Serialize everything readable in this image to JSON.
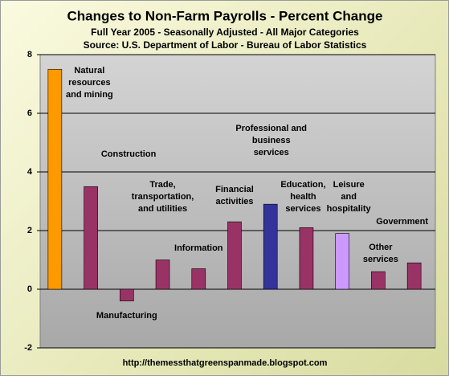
{
  "chart_data": {
    "type": "bar",
    "title": "Changes to Non-Farm Payrolls - Percent Change",
    "subtitle": "Full Year 2005 - Seasonally Adjusted - All Major Categories",
    "source": "Source: U.S. Department of Labor - Bureau of Labor Statistics",
    "footer": "http://themessthatgreenspanmade.blogspot.com",
    "categories": [
      "Natural resources and mining",
      "Construction",
      "Manufacturing",
      "Trade, transportation, and utilities",
      "Information",
      "Financial activities",
      "Professional and business services",
      "Education, health services",
      "Leisure and hospitality",
      "Other services",
      "Government"
    ],
    "values": [
      7.5,
      3.5,
      -0.4,
      1.0,
      0.7,
      2.3,
      2.9,
      2.1,
      1.9,
      0.6,
      0.9
    ],
    "colors": [
      "#ff9900",
      "#993366",
      "#993366",
      "#993366",
      "#993366",
      "#993366",
      "#333399",
      "#993366",
      "#cc99ff",
      "#993366",
      "#993366"
    ],
    "ylim": [
      -2,
      8
    ],
    "yticks": [
      -2,
      0,
      2,
      4,
      6,
      8
    ],
    "grid": true
  }
}
